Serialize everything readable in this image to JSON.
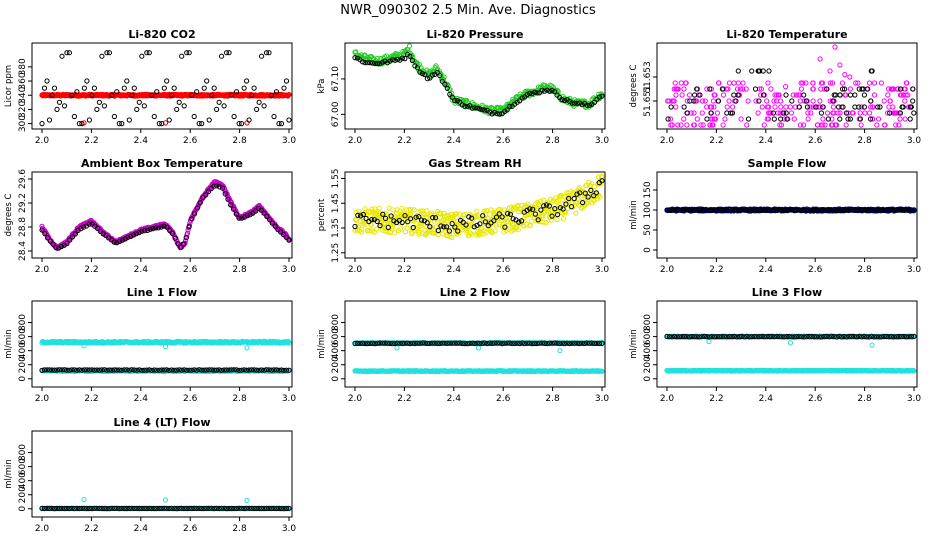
{
  "figure_title": "NWR_090302  2.5 Min. Ave. Diagnostics",
  "chart_data": [
    {
      "id": "co2",
      "type": "scatter",
      "title": "Li-820 CO2",
      "ylabel": "Licor ppm",
      "xlim": [
        2.0,
        3.0
      ],
      "ylim": [
        298,
        408
      ],
      "xticks": [
        2.0,
        2.2,
        2.4,
        2.6,
        2.8,
        3.0
      ],
      "xtick_labels": [
        "2.0",
        "2.2",
        "2.4",
        "2.6",
        "2.8",
        "3.0"
      ],
      "yticks": [
        300,
        320,
        340,
        360,
        380
      ],
      "ytick_labels": [
        "300",
        "320",
        "340",
        "360",
        "380"
      ],
      "series": [
        {
          "name": "band",
          "color": "#ff0000",
          "kind": "band",
          "center": 340,
          "spread": 1.2,
          "density": 420
        },
        {
          "name": "flag",
          "color": "#ff0000",
          "kind": "pts",
          "x": [
            2.17,
            2.5,
            2.83
          ],
          "y": [
            301,
            301,
            301
          ]
        },
        {
          "name": "avg",
          "color": "#000000",
          "kind": "cycle",
          "levels": [
            300,
            400,
            320,
            350,
            340,
            330,
            360,
            310,
            395,
            305,
            345,
            325,
            340,
            300,
            400,
            350
          ],
          "n": 100
        }
      ]
    },
    {
      "id": "press",
      "type": "scatter",
      "title": "Li-820 Pressure",
      "ylabel": "kPa",
      "xlim": [
        2.0,
        3.0
      ],
      "ylim": [
        66.97,
        67.19
      ],
      "xticks": [
        2.0,
        2.2,
        2.4,
        2.6,
        2.8,
        3.0
      ],
      "xtick_labels": [
        "2.0",
        "2.2",
        "2.4",
        "2.6",
        "2.8",
        "3.0"
      ],
      "yticks": [
        67.0,
        67.1
      ],
      "ytick_labels": [
        "67.00",
        "67.10"
      ],
      "series": [
        {
          "name": "raw",
          "color": "#22cc22",
          "kind": "curve",
          "kx": [
            2.0,
            2.05,
            2.1,
            2.15,
            2.2,
            2.22,
            2.25,
            2.3,
            2.33,
            2.36,
            2.4,
            2.45,
            2.5,
            2.55,
            2.6,
            2.65,
            2.7,
            2.75,
            2.78,
            2.8,
            2.85,
            2.9,
            2.95,
            3.0
          ],
          "ky": [
            67.17,
            67.155,
            67.15,
            67.16,
            67.17,
            67.185,
            67.14,
            67.11,
            67.13,
            67.1,
            67.04,
            67.03,
            67.02,
            67.01,
            67.01,
            67.04,
            67.06,
            67.07,
            67.08,
            67.07,
            67.04,
            67.03,
            67.03,
            67.06
          ],
          "noise": 0.01,
          "density": 300
        },
        {
          "name": "avg",
          "color": "#000000",
          "kind": "curve",
          "kx": [
            2.0,
            2.05,
            2.1,
            2.15,
            2.2,
            2.22,
            2.25,
            2.3,
            2.33,
            2.36,
            2.4,
            2.45,
            2.5,
            2.55,
            2.6,
            2.65,
            2.7,
            2.75,
            2.78,
            2.8,
            2.85,
            2.9,
            2.95,
            3.0
          ],
          "ky": [
            67.16,
            67.145,
            67.145,
            67.15,
            67.16,
            67.17,
            67.13,
            67.1,
            67.12,
            67.09,
            67.04,
            67.025,
            67.015,
            67.005,
            67.005,
            67.035,
            67.055,
            67.065,
            67.07,
            67.065,
            67.04,
            67.03,
            67.025,
            67.055
          ],
          "noise": 0.004,
          "density": 100
        }
      ]
    },
    {
      "id": "temp",
      "type": "scatter",
      "title": "Li-820 Temperature",
      "ylabel": "degrees C",
      "xlim": [
        2.0,
        3.0
      ],
      "ylim": [
        51.649,
        51.6555
      ],
      "xticks": [
        2.0,
        2.2,
        2.4,
        2.6,
        2.8,
        3.0
      ],
      "xtick_labels": [
        "2.0",
        "2.2",
        "2.4",
        "2.6",
        "2.8",
        "3.0"
      ],
      "yticks": [
        51.651,
        51.653
      ],
      "ytick_labels": [
        "51.651",
        "51.653"
      ],
      "series": [
        {
          "name": "raw",
          "color": "#ff00ff",
          "kind": "levels",
          "levels": [
            51.649,
            51.6495,
            51.65,
            51.6505,
            51.651,
            51.6515,
            51.652,
            51.6525
          ],
          "density": 260
        },
        {
          "name": "spikes",
          "color": "#ff00ff",
          "kind": "pts",
          "x": [
            2.62,
            2.66,
            2.68,
            2.7,
            2.72,
            2.74,
            2.55,
            2.48
          ],
          "y": [
            51.6545,
            51.6535,
            51.6555,
            51.654,
            51.6532,
            51.653,
            51.6525,
            51.6522
          ]
        },
        {
          "name": "avg",
          "color": "#000000",
          "kind": "levels",
          "levels": [
            51.6495,
            51.65,
            51.6505,
            51.651,
            51.6515,
            51.652,
            51.6535
          ],
          "density": 90
        }
      ]
    },
    {
      "id": "box",
      "type": "scatter",
      "title": "Ambient Box Temperature",
      "ylabel": "degrees C",
      "xlim": [
        2.0,
        3.0
      ],
      "ylim": [
        28.35,
        29.65
      ],
      "xticks": [
        2.0,
        2.2,
        2.4,
        2.6,
        2.8,
        3.0
      ],
      "xtick_labels": [
        "2.0",
        "2.2",
        "2.4",
        "2.6",
        "2.8",
        "3.0"
      ],
      "yticks": [
        28.4,
        28.8,
        29.2,
        29.6
      ],
      "ytick_labels": [
        "28.4",
        "28.8",
        "29.2",
        "29.6"
      ],
      "series": [
        {
          "name": "raw",
          "color": "#cc00cc",
          "kind": "curve",
          "kx": [
            2.0,
            2.03,
            2.06,
            2.1,
            2.15,
            2.2,
            2.25,
            2.3,
            2.35,
            2.4,
            2.45,
            2.5,
            2.53,
            2.56,
            2.58,
            2.6,
            2.65,
            2.7,
            2.73,
            2.76,
            2.8,
            2.85,
            2.88,
            2.92,
            2.95,
            2.98,
            3.0
          ],
          "ky": [
            28.8,
            28.6,
            28.45,
            28.55,
            28.8,
            28.9,
            28.7,
            28.55,
            28.65,
            28.75,
            28.8,
            28.85,
            28.7,
            28.45,
            28.55,
            28.9,
            29.3,
            29.55,
            29.5,
            29.25,
            28.95,
            29.05,
            29.15,
            28.95,
            28.8,
            28.7,
            28.6
          ],
          "noise": 0.015,
          "density": 400
        },
        {
          "name": "avg",
          "color": "#000000",
          "kind": "curve",
          "kx": [
            2.0,
            2.03,
            2.06,
            2.1,
            2.15,
            2.2,
            2.25,
            2.3,
            2.35,
            2.4,
            2.45,
            2.5,
            2.53,
            2.56,
            2.58,
            2.6,
            2.65,
            2.7,
            2.73,
            2.76,
            2.8,
            2.85,
            2.88,
            2.92,
            2.95,
            2.98,
            3.0
          ],
          "ky": [
            28.75,
            28.58,
            28.44,
            28.52,
            28.76,
            28.86,
            28.68,
            28.53,
            28.63,
            28.72,
            28.77,
            28.82,
            28.68,
            28.45,
            28.55,
            28.88,
            29.28,
            29.5,
            29.45,
            29.2,
            28.93,
            29.02,
            29.12,
            28.93,
            28.78,
            28.67,
            28.58
          ],
          "noise": 0.005,
          "density": 90
        }
      ]
    },
    {
      "id": "rh",
      "type": "scatter",
      "title": "Gas Stream RH",
      "ylabel": "percent",
      "xlim": [
        2.0,
        3.0
      ],
      "ylim": [
        1.245,
        1.56
      ],
      "xticks": [
        2.0,
        2.2,
        2.4,
        2.6,
        2.8,
        3.0
      ],
      "xtick_labels": [
        "2.0",
        "2.2",
        "2.4",
        "2.6",
        "2.8",
        "3.0"
      ],
      "yticks": [
        1.25,
        1.35,
        1.45,
        1.55
      ],
      "ytick_labels": [
        "1.25",
        "1.35",
        "1.45",
        "1.55"
      ],
      "series": [
        {
          "name": "raw",
          "color": "#e8e800",
          "kind": "curve",
          "kx": [
            2.0,
            2.2,
            2.4,
            2.6,
            2.7,
            2.8,
            2.9,
            3.0
          ],
          "ky": [
            1.38,
            1.38,
            1.36,
            1.38,
            1.4,
            1.42,
            1.46,
            1.52
          ],
          "noise": 0.05,
          "density": 500
        },
        {
          "name": "avg",
          "color": "#000000",
          "kind": "curve",
          "kx": [
            2.0,
            2.2,
            2.4,
            2.6,
            2.7,
            2.8,
            2.9,
            3.0
          ],
          "ky": [
            1.38,
            1.38,
            1.36,
            1.38,
            1.4,
            1.42,
            1.46,
            1.53
          ],
          "noise": 0.03,
          "density": 90
        }
      ]
    },
    {
      "id": "sflow",
      "type": "scatter",
      "title": "Sample Flow",
      "ylabel": "ml/min",
      "xlim": [
        2.0,
        3.0
      ],
      "ylim": [
        -10,
        185
      ],
      "xticks": [
        2.0,
        2.2,
        2.4,
        2.6,
        2.8,
        3.0
      ],
      "xtick_labels": [
        "2.0",
        "2.2",
        "2.4",
        "2.6",
        "2.8",
        "3.0"
      ],
      "yticks": [
        0,
        50,
        100,
        150
      ],
      "ytick_labels": [
        "0",
        "50",
        "100",
        "150"
      ],
      "series": [
        {
          "name": "raw",
          "color": "#000080",
          "kind": "band",
          "center": 100,
          "spread": 2.5,
          "density": 400
        },
        {
          "name": "avg",
          "color": "#000000",
          "kind": "band",
          "center": 100,
          "spread": 1,
          "density": 100
        }
      ]
    },
    {
      "id": "l1",
      "type": "scatter",
      "title": "Line 1 Flow",
      "ylabel": "ml/min",
      "xlim": [
        2.0,
        3.0
      ],
      "ylim": [
        -60,
        1050
      ],
      "xticks": [
        2.0,
        2.2,
        2.4,
        2.6,
        2.8,
        3.0
      ],
      "xtick_labels": [
        "2.0",
        "2.2",
        "2.4",
        "2.6",
        "2.8",
        "3.0"
      ],
      "yticks": [
        0,
        200,
        400,
        600,
        800
      ],
      "ytick_labels": [
        "0",
        "200",
        "400",
        "600",
        "800"
      ],
      "series": [
        {
          "name": "raw_hi",
          "color": "#22e0e0",
          "kind": "band",
          "center": 520,
          "spread": 12,
          "density": 350
        },
        {
          "name": "raw_lo",
          "color": "#22e0e0",
          "kind": "band",
          "center": 110,
          "spread": 6,
          "density": 200
        },
        {
          "name": "flag",
          "color": "#22e0e0",
          "kind": "pts",
          "x": [
            2.17,
            2.5,
            2.83
          ],
          "y": [
            470,
            460,
            440
          ]
        },
        {
          "name": "avg",
          "color": "#000000",
          "kind": "band",
          "center": 125,
          "spread": 4,
          "density": 100
        }
      ]
    },
    {
      "id": "l2",
      "type": "scatter",
      "title": "Line 2 Flow",
      "ylabel": "ml/min",
      "xlim": [
        2.0,
        3.0
      ],
      "ylim": [
        -60,
        1050
      ],
      "xticks": [
        2.0,
        2.2,
        2.4,
        2.6,
        2.8,
        3.0
      ],
      "xtick_labels": [
        "2.0",
        "2.2",
        "2.4",
        "2.6",
        "2.8",
        "3.0"
      ],
      "yticks": [
        0,
        200,
        400,
        600,
        800
      ],
      "ytick_labels": [
        "0",
        "200",
        "400",
        "600",
        "800"
      ],
      "series": [
        {
          "name": "raw_hi",
          "color": "#22e0e0",
          "kind": "band",
          "center": 510,
          "spread": 8,
          "density": 250
        },
        {
          "name": "raw_lo",
          "color": "#22e0e0",
          "kind": "band",
          "center": 110,
          "spread": 6,
          "density": 300
        },
        {
          "name": "flag",
          "color": "#22e0e0",
          "kind": "pts",
          "x": [
            2.17,
            2.5,
            2.83
          ],
          "y": [
            440,
            440,
            400
          ]
        },
        {
          "name": "avg",
          "color": "#000000",
          "kind": "band",
          "center": 505,
          "spread": 4,
          "density": 100
        }
      ]
    },
    {
      "id": "l3",
      "type": "scatter",
      "title": "Line 3 Flow",
      "ylabel": "ml/min",
      "xlim": [
        2.0,
        3.0
      ],
      "ylim": [
        -60,
        1050
      ],
      "xticks": [
        2.0,
        2.2,
        2.4,
        2.6,
        2.8,
        3.0
      ],
      "xtick_labels": [
        "2.0",
        "2.2",
        "2.4",
        "2.6",
        "2.8",
        "3.0"
      ],
      "yticks": [
        0,
        200,
        400,
        600,
        800
      ],
      "ytick_labels": [
        "0",
        "200",
        "400",
        "600",
        "800"
      ],
      "series": [
        {
          "name": "raw_hi",
          "color": "#22e0e0",
          "kind": "band",
          "center": 600,
          "spread": 8,
          "density": 250
        },
        {
          "name": "raw_lo",
          "color": "#22e0e0",
          "kind": "band",
          "center": 115,
          "spread": 5,
          "density": 320
        },
        {
          "name": "flag",
          "color": "#22e0e0",
          "kind": "pts",
          "x": [
            2.17,
            2.5,
            2.83
          ],
          "y": [
            530,
            510,
            480
          ]
        },
        {
          "name": "avg",
          "color": "#000000",
          "kind": "band",
          "center": 600,
          "spread": 4,
          "density": 100
        }
      ]
    },
    {
      "id": "l4",
      "type": "scatter",
      "title": "Line 4 (LT) Flow",
      "ylabel": "ml/min",
      "xlim": [
        2.0,
        3.0
      ],
      "ylim": [
        -60,
        1050
      ],
      "xticks": [
        2.0,
        2.2,
        2.4,
        2.6,
        2.8,
        3.0
      ],
      "xtick_labels": [
        "2.0",
        "2.2",
        "2.4",
        "2.6",
        "2.8",
        "3.0"
      ],
      "yticks": [
        0,
        200,
        400,
        600,
        800
      ],
      "ytick_labels": [
        "0",
        "200",
        "400",
        "600",
        "800"
      ],
      "series": [
        {
          "name": "raw",
          "color": "#22e0e0",
          "kind": "band",
          "center": 5,
          "spread": 3,
          "density": 300
        },
        {
          "name": "flag",
          "color": "#22e0e0",
          "kind": "pts",
          "x": [
            2.17,
            2.5,
            2.83
          ],
          "y": [
            130,
            125,
            120
          ]
        },
        {
          "name": "avg",
          "color": "#000000",
          "kind": "band",
          "center": 5,
          "spread": 2,
          "density": 100
        }
      ]
    }
  ]
}
